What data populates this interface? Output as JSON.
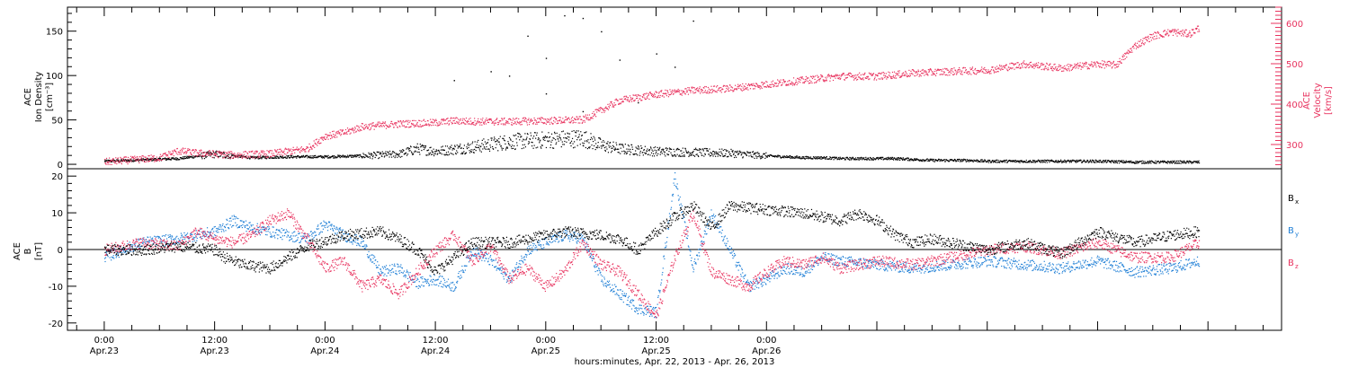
{
  "colors": {
    "black": "#000000",
    "pink": "#e8335f",
    "blue": "#1f7fd6"
  },
  "chart_data": [
    {
      "type": "scatter",
      "panel": "top",
      "ylabel_lines": [
        "ACE",
        "Ion Density",
        "[cm⁻³]"
      ],
      "y2label_lines": [
        "ACE",
        "Velocity",
        "[km/s]"
      ],
      "ylim": [
        -5,
        177
      ],
      "y2lim": [
        240,
        640
      ],
      "yticks": [
        "0",
        "50",
        "100",
        "150"
      ],
      "y2ticks": [
        "300",
        "400",
        "500",
        "600"
      ],
      "series": [
        {
          "name": "Ion Density",
          "color": "black",
          "x": [
            0,
            8,
            12,
            16,
            20,
            24,
            28,
            32,
            34,
            36,
            40,
            44,
            48,
            52,
            54,
            56,
            60,
            64,
            68,
            72,
            74,
            76,
            78,
            80,
            82,
            84,
            86,
            88,
            90,
            92,
            94,
            96,
            100,
            104,
            108,
            112,
            114,
            116,
            119
          ],
          "values": [
            4,
            7,
            12,
            8,
            9,
            9,
            10,
            12,
            18,
            15,
            20,
            26,
            28,
            30,
            22,
            18,
            15,
            14,
            13,
            10,
            9,
            8,
            8,
            7,
            7,
            7,
            7,
            6,
            5,
            5,
            5,
            4,
            4,
            4,
            4,
            3,
            3,
            3,
            3
          ]
        },
        {
          "name": "Velocity",
          "color": "pink",
          "x": [
            0,
            6,
            8,
            10,
            14,
            18,
            22,
            24,
            26,
            28,
            32,
            36,
            38,
            40,
            44,
            48,
            52,
            56,
            60,
            64,
            68,
            72,
            76,
            80,
            84,
            88,
            92,
            96,
            100,
            104,
            108,
            110,
            112,
            114,
            116,
            118,
            119
          ],
          "values": [
            258,
            268,
            285,
            280,
            275,
            278,
            290,
            322,
            330,
            345,
            352,
            355,
            360,
            358,
            358,
            360,
            362,
            410,
            425,
            435,
            440,
            450,
            460,
            470,
            470,
            478,
            482,
            485,
            500,
            490,
            500,
            498,
            545,
            570,
            580,
            575,
            590
          ]
        }
      ],
      "outliers": [
        [
          38,
          95
        ],
        [
          42,
          105
        ],
        [
          44,
          100
        ],
        [
          46,
          145
        ],
        [
          48,
          120
        ],
        [
          50,
          168
        ],
        [
          52,
          165
        ],
        [
          54,
          150
        ],
        [
          56,
          118
        ],
        [
          62,
          110
        ],
        [
          64,
          162
        ],
        [
          60,
          125
        ],
        [
          48,
          80
        ],
        [
          52,
          60
        ],
        [
          58,
          70
        ]
      ]
    },
    {
      "type": "scatter",
      "panel": "bottom",
      "ylabel_lines": [
        "ACE",
        "B",
        "[nT]"
      ],
      "ylim": [
        -22,
        22
      ],
      "yticks": [
        "20",
        "10",
        "0",
        "-10",
        "-20"
      ],
      "legend_position": "right",
      "legend": [
        {
          "label": "B",
          "sub": "x",
          "color": "black"
        },
        {
          "label": "B",
          "sub": "y",
          "color": "blue"
        },
        {
          "label": "B",
          "sub": "z",
          "color": "pink"
        }
      ],
      "series": [
        {
          "name": "Bx",
          "color": "black",
          "x": [
            0,
            4,
            8,
            12,
            13,
            15,
            18,
            22,
            26,
            30,
            32,
            34,
            36,
            40,
            44,
            48,
            50,
            54,
            56,
            58,
            60,
            62,
            64,
            66,
            68,
            72,
            76,
            80,
            82,
            84,
            86,
            88,
            90,
            92,
            96,
            100,
            104,
            108,
            112,
            116,
            119
          ],
          "values": [
            0,
            0,
            1,
            0,
            -2,
            -4,
            -5,
            1,
            4,
            5,
            3,
            0,
            -6,
            2,
            2,
            4,
            5,
            4,
            3,
            0,
            5,
            9,
            12,
            6,
            12,
            11,
            10,
            8,
            10,
            8,
            4,
            2,
            3,
            2,
            0,
            2,
            -1,
            5,
            2,
            4,
            5
          ]
        },
        {
          "name": "By",
          "color": "blue",
          "x": [
            0,
            4,
            8,
            12,
            14,
            16,
            18,
            20,
            22,
            24,
            26,
            28,
            30,
            32,
            34,
            36,
            38,
            40,
            42,
            44,
            46,
            48,
            50,
            52,
            54,
            56,
            58,
            60,
            62,
            64,
            66,
            68,
            70,
            72,
            74,
            76,
            78,
            80,
            84,
            88,
            92,
            96,
            100,
            104,
            108,
            112,
            116,
            119
          ],
          "values": [
            -2,
            2,
            3,
            5,
            8,
            6,
            5,
            4,
            3,
            7,
            4,
            2,
            -6,
            -5,
            -9,
            -8,
            -10,
            0,
            -3,
            -8,
            0,
            2,
            4,
            3,
            -8,
            -12,
            -16,
            -17,
            20,
            -5,
            10,
            0,
            -10,
            -8,
            -5,
            -6,
            -2,
            -3,
            -4,
            -5,
            -4,
            -3,
            -4,
            -5,
            -3,
            -6,
            -5,
            -3
          ]
        },
        {
          "name": "Bz",
          "color": "pink",
          "x": [
            0,
            4,
            8,
            10,
            12,
            14,
            16,
            18,
            20,
            22,
            24,
            26,
            28,
            30,
            32,
            34,
            36,
            38,
            40,
            42,
            44,
            46,
            48,
            50,
            52,
            54,
            56,
            58,
            60,
            62,
            64,
            66,
            68,
            70,
            72,
            74,
            76,
            78,
            80,
            84,
            88,
            92,
            96,
            100,
            104,
            108,
            112,
            116,
            119
          ],
          "values": [
            0,
            2,
            1,
            5,
            3,
            2,
            4,
            8,
            10,
            3,
            -5,
            -3,
            -10,
            -8,
            -12,
            -6,
            0,
            4,
            -3,
            1,
            -8,
            -5,
            -10,
            -6,
            2,
            -4,
            -6,
            -12,
            -18,
            -2,
            10,
            -6,
            -8,
            -10,
            -6,
            -3,
            -4,
            -2,
            -5,
            -3,
            -4,
            -2,
            0,
            1,
            -1,
            2,
            -2,
            -2,
            2
          ]
        }
      ]
    }
  ],
  "x_axis": {
    "xlim": [
      -4,
      128
    ],
    "ticks": [
      {
        "x": 0,
        "top": "0:00",
        "bottom": "Apr.23"
      },
      {
        "x": 12,
        "top": "12:00",
        "bottom": "Apr.23"
      },
      {
        "x": 24,
        "top": "0:00",
        "bottom": "Apr.24"
      },
      {
        "x": 36,
        "top": "12:00",
        "bottom": "Apr.24"
      },
      {
        "x": 48,
        "top": "0:00",
        "bottom": "Apr.25"
      },
      {
        "x": 60,
        "top": "12:00",
        "bottom": "Apr.25"
      },
      {
        "x": 72,
        "top": "0:00",
        "bottom": "Apr.26"
      }
    ],
    "label": "hours:minutes, Apr. 22, 2013 - Apr. 26, 2013"
  }
}
